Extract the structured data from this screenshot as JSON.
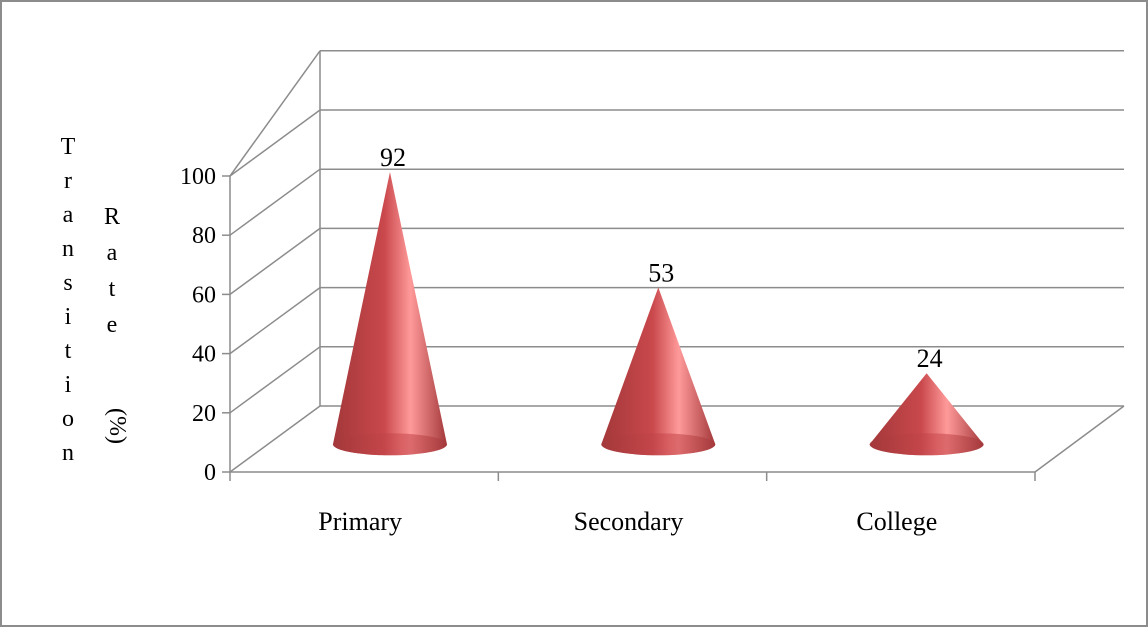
{
  "chart_data": {
    "type": "bar",
    "style": "3d-cone",
    "categories": [
      "Primary",
      "Secondary",
      "College"
    ],
    "values": [
      92,
      53,
      24
    ],
    "data_labels": [
      "92",
      "53",
      "24"
    ],
    "title": "",
    "xlabel": "",
    "ylabel": "Transition Rate (%)",
    "ylabel_words": [
      "Transition",
      "Rate",
      "(%)"
    ],
    "ylim": [
      0,
      100
    ],
    "yticks": [
      "0",
      "20",
      "40",
      "60",
      "80",
      "100"
    ],
    "grid": true,
    "legend": "none",
    "colors": {
      "cone_dark": "#a3383a",
      "cone_mid": "#c9484c",
      "cone_light": "#ff9a9a",
      "grid": "#8c8c8c",
      "frame": "#8c8c8c"
    }
  }
}
